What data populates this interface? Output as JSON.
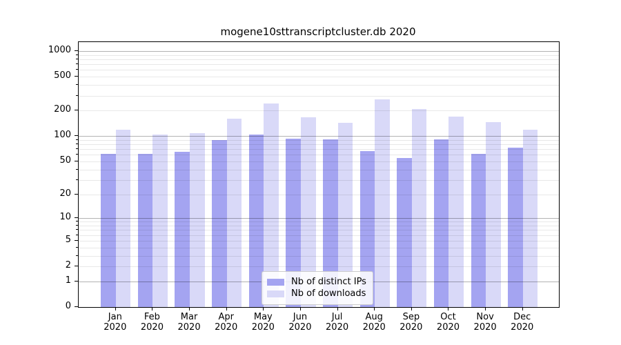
{
  "chart_data": {
    "type": "bar",
    "title": "mogene10sttranscriptcluster.db 2020",
    "categories": [
      "Jan",
      "Feb",
      "Mar",
      "Apr",
      "May",
      "Jun",
      "Jul",
      "Aug",
      "Sep",
      "Oct",
      "Nov",
      "Dec"
    ],
    "x_tick_year_label": "2020",
    "series": [
      {
        "name": "Nb of distinct IPs",
        "color": "#a4a4f1",
        "values": [
          61,
          61,
          65,
          89,
          104,
          93,
          92,
          66,
          55,
          92,
          62,
          73
        ]
      },
      {
        "name": "Nb of downloads",
        "color": "#d9d9f8",
        "values": [
          119,
          104,
          109,
          161,
          242,
          166,
          142,
          270,
          210,
          170,
          145,
          118
        ]
      }
    ],
    "y_scale": "log10(1+v)",
    "y_ticks": [
      0,
      1,
      2,
      5,
      10,
      20,
      50,
      100,
      200,
      500,
      1000
    ],
    "ylim": [
      0,
      1280
    ],
    "grid": "both",
    "grid_major_at": [
      1,
      10,
      100,
      1000
    ],
    "legend_position": "lower center"
  }
}
